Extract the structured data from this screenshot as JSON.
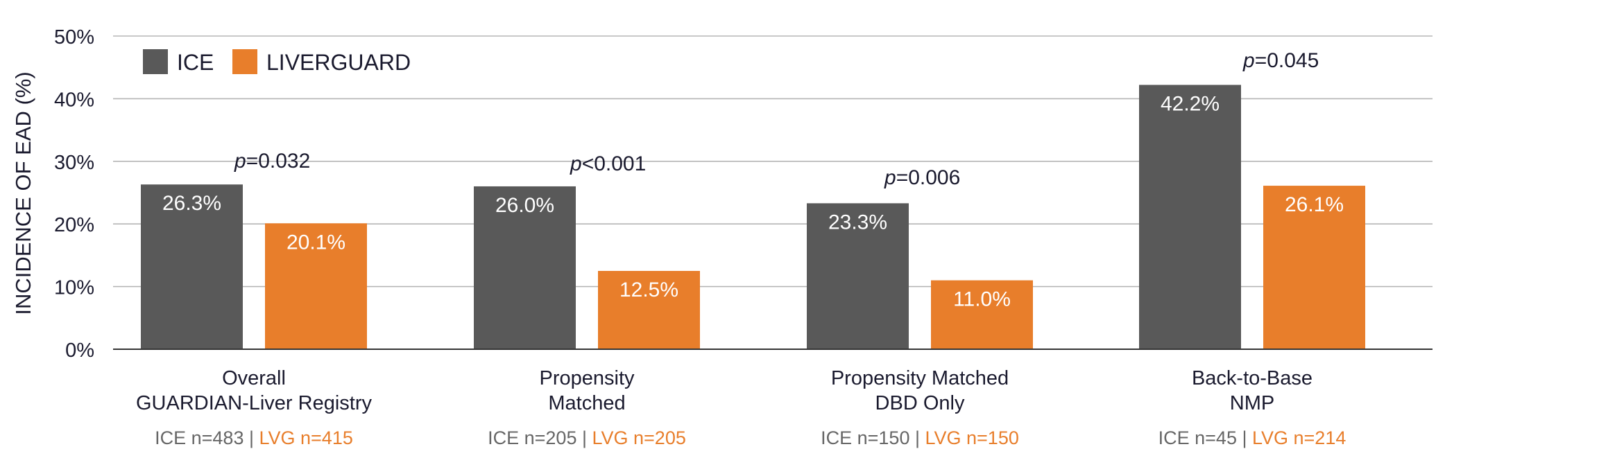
{
  "chart_data": {
    "type": "bar",
    "ylabel": "INCIDENCE OF EAD (%)",
    "ylim": [
      0,
      50
    ],
    "yticks": [
      0,
      10,
      20,
      30,
      40,
      50
    ],
    "ytick_labels": [
      "0%",
      "10%",
      "20%",
      "30%",
      "40%",
      "50%"
    ],
    "grid": true,
    "legend_position": "top-left",
    "series": [
      {
        "name": "ICE",
        "color": "#595959",
        "values": [
          26.3,
          26.0,
          23.3,
          42.2
        ],
        "labels": [
          "26.3%",
          "26.0%",
          "23.3%",
          "42.2%"
        ]
      },
      {
        "name": "LIVERGUARD",
        "color": "#e87e2b",
        "values": [
          20.1,
          12.5,
          11.0,
          26.1
        ],
        "labels": [
          "20.1%",
          "12.5%",
          "11.0%",
          "26.1%"
        ]
      }
    ],
    "categories": [
      {
        "lines": [
          "Overall",
          "GUARDIAN-Liver Registry"
        ],
        "ice_n": "ICE n=483",
        "lvg_n": "LVG n=415",
        "p_italic": "p",
        "p_rest": "=0.032"
      },
      {
        "lines": [
          "Propensity",
          "Matched"
        ],
        "ice_n": "ICE n=205",
        "lvg_n": "LVG n=205",
        "p_italic": "p",
        "p_rest": "<0.001"
      },
      {
        "lines": [
          "Propensity Matched",
          "DBD Only"
        ],
        "ice_n": "ICE n=150",
        "lvg_n": "LVG n=150",
        "p_italic": "p",
        "p_rest": "=0.006"
      },
      {
        "lines": [
          "Back-to-Base",
          "NMP"
        ],
        "ice_n": "ICE n=45",
        "lvg_n": "LVG n=214",
        "p_italic": "p",
        "p_rest": "=0.045"
      }
    ],
    "n_separator": " | ",
    "colors": {
      "text": "#1a1a2e",
      "grid": "#b5b5b5",
      "axis": "#333333",
      "n_text": "#666666",
      "bar_label": "#ffffff"
    }
  }
}
